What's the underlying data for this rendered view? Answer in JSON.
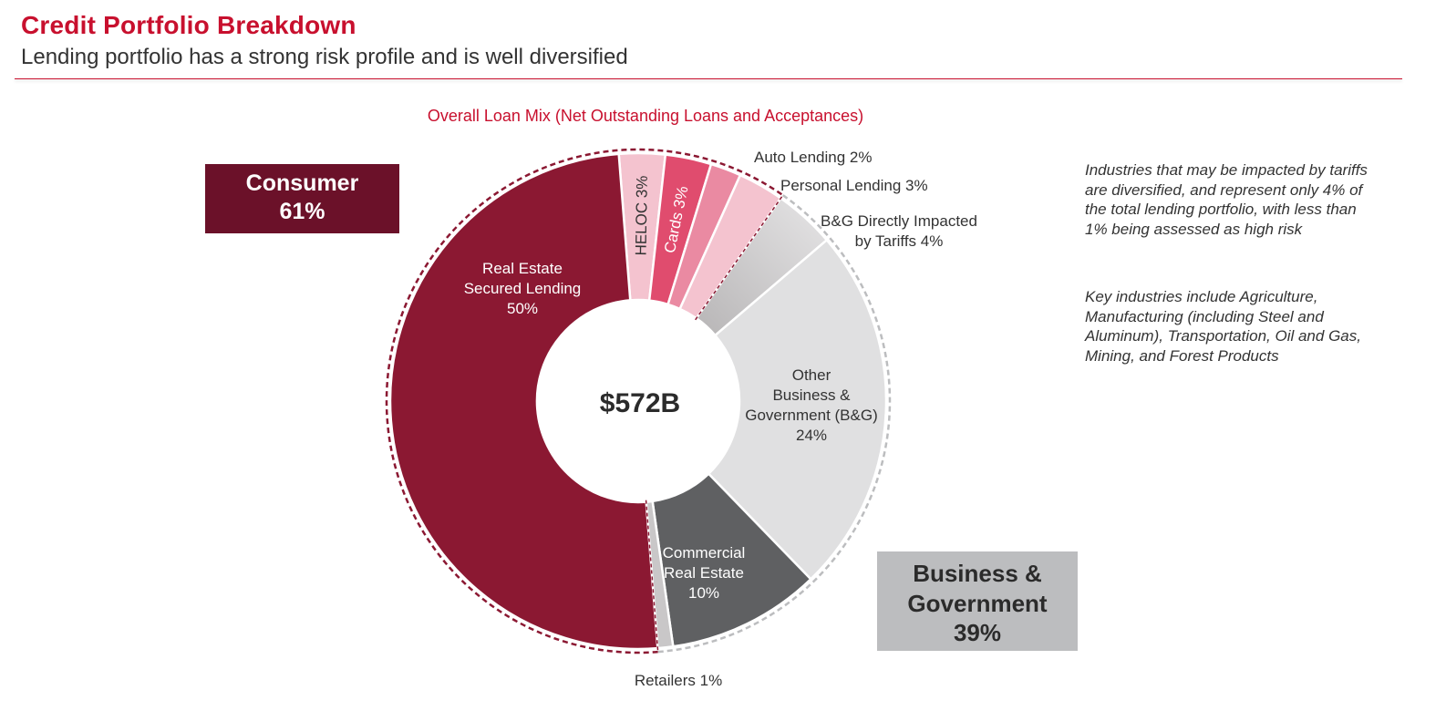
{
  "header": {
    "title": "Credit Portfolio Breakdown",
    "subtitle": "Lending portfolio has a strong risk profile and is well diversified"
  },
  "chart_data": {
    "type": "pie",
    "variant": "donut",
    "title": "Overall Loan Mix (Net Outstanding Loans and Acceptances)",
    "total_label": "$572B",
    "slices": [
      {
        "name": "HELOC",
        "label": "HELOC 3%",
        "value": 3,
        "group": "Consumer",
        "color": "#f4c3cf"
      },
      {
        "name": "Cards",
        "label": "Cards 3%",
        "value": 3,
        "group": "Consumer",
        "color": "#e04c6e"
      },
      {
        "name": "Auto Lending",
        "label": "Auto Lending 2%",
        "value": 2,
        "group": "Consumer",
        "color": "#ea8aa2"
      },
      {
        "name": "Personal Lending",
        "label": "Personal Lending 3%",
        "value": 3,
        "group": "Consumer",
        "color": "#f4c3cf"
      },
      {
        "name": "B&G Directly Impacted by Tariffs",
        "label_lines": [
          "B&G Directly Impacted",
          "by Tariffs 4%"
        ],
        "value": 4,
        "group": "Business & Government",
        "color": "#c9c7c8"
      },
      {
        "name": "Other Business & Government (B&G)",
        "label_lines": [
          "Other",
          "Business &",
          "Government (B&G)",
          "24%"
        ],
        "value": 24,
        "group": "Business & Government",
        "color": "#e0e0e1"
      },
      {
        "name": "Commercial Real Estate",
        "label_lines": [
          "Commercial",
          "Real Estate",
          "10%"
        ],
        "value": 10,
        "group": "Business & Government",
        "color": "#5f6062"
      },
      {
        "name": "Retailers",
        "label": "Retailers 1%",
        "value": 1,
        "group": "Business & Government",
        "color": "#c9c7c8"
      },
      {
        "name": "Real Estate Secured Lending",
        "label_lines": [
          "Real Estate",
          "Secured Lending",
          "50%"
        ],
        "value": 50,
        "group": "Consumer",
        "color": "#8b1832"
      }
    ],
    "groups": [
      {
        "name": "Consumer",
        "lines": [
          "Consumer",
          "61%"
        ],
        "value": 61,
        "color": "#6b1129"
      },
      {
        "name": "Business & Government",
        "lines": [
          "Business &",
          "Government",
          "39%"
        ],
        "value": 39,
        "color": "#bcbdbf"
      }
    ]
  },
  "notes": [
    "Industries that may be impacted by tariffs are diversified, and represent only 4% of the total lending portfolio, with less than 1% being assessed as high risk",
    "Key industries include Agriculture, Manufacturing (including Steel and Aluminum), Transportation, Oil and Gas, Mining, and Forest Products"
  ]
}
